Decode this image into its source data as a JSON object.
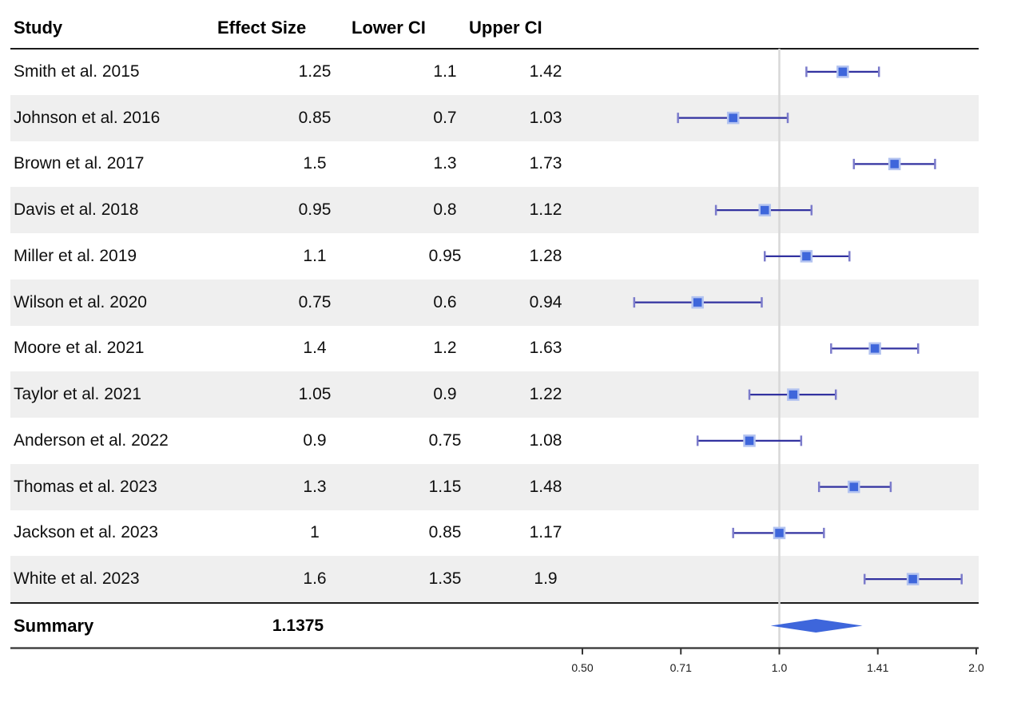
{
  "table": {
    "columns": [
      {
        "label": "Study"
      },
      {
        "label": "Effect Size"
      },
      {
        "label": "Lower CI"
      },
      {
        "label": "Upper CI"
      }
    ]
  },
  "chart_data": {
    "type": "forest",
    "x_scale": "log2",
    "x_range": [
      0.5,
      2.0
    ],
    "reference_value": 1.0,
    "grid": "off",
    "x_ticks": [
      {
        "value": 0.5,
        "label": "0.50"
      },
      {
        "value": 0.7071,
        "label": "0.71"
      },
      {
        "value": 1.0,
        "label": "1.0"
      },
      {
        "value": 1.4142,
        "label": "1.41"
      },
      {
        "value": 2.0,
        "label": "2.0"
      }
    ],
    "studies": [
      {
        "study": "Smith et al. 2015",
        "effect": 1.25,
        "lower": 1.1,
        "upper": 1.42
      },
      {
        "study": "Johnson et al. 2016",
        "effect": 0.85,
        "lower": 0.7,
        "upper": 1.03
      },
      {
        "study": "Brown et al. 2017",
        "effect": 1.5,
        "lower": 1.3,
        "upper": 1.73
      },
      {
        "study": "Davis et al. 2018",
        "effect": 0.95,
        "lower": 0.8,
        "upper": 1.12
      },
      {
        "study": "Miller et al. 2019",
        "effect": 1.1,
        "lower": 0.95,
        "upper": 1.28
      },
      {
        "study": "Wilson et al. 2020",
        "effect": 0.75,
        "lower": 0.6,
        "upper": 0.94
      },
      {
        "study": "Moore et al. 2021",
        "effect": 1.4,
        "lower": 1.2,
        "upper": 1.63
      },
      {
        "study": "Taylor et al. 2021",
        "effect": 1.05,
        "lower": 0.9,
        "upper": 1.22
      },
      {
        "study": "Anderson et al. 2022",
        "effect": 0.9,
        "lower": 0.75,
        "upper": 1.08
      },
      {
        "study": "Thomas et al. 2023",
        "effect": 1.3,
        "lower": 1.15,
        "upper": 1.48
      },
      {
        "study": "Jackson et al. 2023",
        "effect": 1,
        "lower": 0.85,
        "upper": 1.17
      },
      {
        "study": "White et al. 2023",
        "effect": 1.6,
        "lower": 1.35,
        "upper": 1.9
      }
    ],
    "summary": {
      "label": "Summary",
      "effect_label": "1.1375",
      "effect": 1.1375,
      "diamond_lower": 0.97,
      "diamond_upper": 1.34
    },
    "colors": {
      "marker_fill": "#3e66db",
      "marker_border": "#b3c3f0",
      "ci_line": "#3232a0",
      "ci_cap": "#7b7bcb",
      "diamond": "#3e66db",
      "reference_line": "#d8d8d8",
      "stripe": "#efefef",
      "rule": "#1c1c1c",
      "axis": "#333333",
      "tick_label": "#1a1a1a"
    }
  }
}
